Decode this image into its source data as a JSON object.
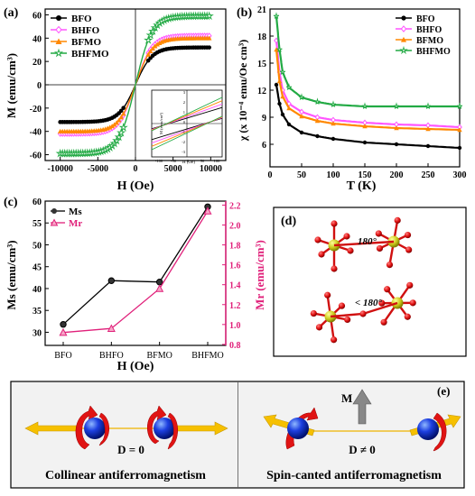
{
  "figure": {
    "panels": [
      {
        "letter": "(a)"
      },
      {
        "letter": "(b)"
      },
      {
        "letter": "(c)"
      },
      {
        "letter": "(d)"
      },
      {
        "letter": "(e)"
      }
    ]
  },
  "chart_data": [
    {
      "id": "a",
      "type": "line",
      "xlabel": "H (Oe)",
      "ylabel": "M (emu/cm³)",
      "xlim": [
        -12000,
        12000
      ],
      "ylim": [
        -65,
        65
      ],
      "x_ticks": [
        "-10000",
        "-5000",
        "0",
        "5000",
        "10000"
      ],
      "y_ticks": [
        "-60",
        "-40",
        "-20",
        "0",
        "20",
        "40",
        "60"
      ],
      "legend_position": "top-left",
      "series": [
        {
          "name": "BFO",
          "color": "#000000",
          "marker": "circle",
          "Ms": 32,
          "x": [
            -10000,
            -5000,
            -3000,
            -1000,
            0,
            1000,
            3000,
            5000,
            10000
          ],
          "y": [
            -31,
            -29,
            -26,
            -16,
            0,
            16,
            26,
            29,
            32
          ]
        },
        {
          "name": "BHFO",
          "color": "#ff55ff",
          "marker": "diamond",
          "Ms": 42,
          "x": [
            -10000,
            -5000,
            -3000,
            -1000,
            0,
            1000,
            3000,
            5000,
            10000
          ],
          "y": [
            -40,
            -38,
            -34,
            -20,
            0,
            20,
            34,
            39,
            42
          ]
        },
        {
          "name": "BFMO",
          "color": "#ff8800",
          "marker": "triangle",
          "Ms": 40,
          "x": [
            -10000,
            -5000,
            -3000,
            -1000,
            0,
            1000,
            3000,
            5000,
            10000
          ],
          "y": [
            -38,
            -36,
            -32,
            -19,
            0,
            19,
            32,
            37,
            40
          ]
        },
        {
          "name": "BHFMO",
          "color": "#22aa44",
          "marker": "star",
          "Ms": 59,
          "x": [
            -10000,
            -5000,
            -3000,
            -1000,
            0,
            1000,
            3000,
            5000,
            10000
          ],
          "y": [
            -55,
            -52,
            -46,
            -28,
            0,
            28,
            46,
            54,
            59
          ]
        }
      ],
      "inset": {
        "xlabel": "H (Oe)",
        "ylabel": "M (emu/cm³)",
        "x_ticks": [
          "-100",
          "-50",
          "0",
          "50",
          "100"
        ],
        "y_ticks": [
          "-3",
          "-2",
          "-1",
          "0",
          "1",
          "2",
          "3"
        ]
      }
    },
    {
      "id": "b",
      "type": "line",
      "xlabel": "T (K)",
      "ylabel": "χ (x 10⁻⁴ emu/Oe cm³)",
      "xlim": [
        0,
        300
      ],
      "ylim": [
        3.5,
        21
      ],
      "x_ticks": [
        "0",
        "50",
        "100",
        "150",
        "200",
        "250",
        "300"
      ],
      "y_ticks": [
        "6",
        "9",
        "12",
        "15",
        "18",
        "21"
      ],
      "legend_position": "top-right",
      "series": [
        {
          "name": "BFO",
          "color": "#000000",
          "T": [
            10,
            15,
            20,
            30,
            50,
            75,
            100,
            150,
            200,
            250,
            300
          ],
          "chi": [
            12.6,
            10.5,
            9.3,
            8.2,
            7.3,
            6.9,
            6.6,
            6.2,
            6.0,
            5.8,
            5.6
          ]
        },
        {
          "name": "BHFO",
          "color": "#ff55ff",
          "T": [
            10,
            15,
            20,
            30,
            50,
            75,
            100,
            150,
            200,
            250,
            300
          ],
          "chi": [
            17.5,
            14.0,
            12.0,
            10.5,
            9.6,
            9.0,
            8.7,
            8.4,
            8.2,
            8.1,
            7.9
          ]
        },
        {
          "name": "BFMO",
          "color": "#ff8800",
          "T": [
            10,
            15,
            20,
            30,
            50,
            75,
            100,
            150,
            200,
            250,
            300
          ],
          "chi": [
            16.5,
            13.0,
            11.3,
            10.0,
            9.1,
            8.6,
            8.3,
            8.0,
            7.8,
            7.7,
            7.6
          ]
        },
        {
          "name": "BHFMO",
          "color": "#22aa44",
          "T": [
            10,
            15,
            20,
            30,
            50,
            75,
            100,
            150,
            200,
            250,
            300
          ],
          "chi": [
            20.2,
            16.5,
            14.0,
            12.3,
            11.2,
            10.7,
            10.4,
            10.2,
            10.2,
            10.2,
            10.2
          ]
        }
      ]
    },
    {
      "id": "c",
      "type": "line",
      "xlabel": "H (Oe)",
      "ylabel": "Ms (emu/cm³)",
      "y2label": "Mr (emu/cm³)",
      "categories": [
        "BFO",
        "BHFO",
        "BFMO",
        "BHFMO"
      ],
      "ylim": [
        27,
        60
      ],
      "y2lim": [
        0.79,
        2.24
      ],
      "y_ticks": [
        "30",
        "35",
        "40",
        "45",
        "50",
        "55",
        "60"
      ],
      "y2_ticks": [
        "0.8",
        "1.0",
        "1.2",
        "1.4",
        "1.6",
        "1.8",
        "2.0",
        "2.2"
      ],
      "legend_position": "top-left",
      "series": [
        {
          "name": "Ms",
          "color": "#000000",
          "axis": "left",
          "values": [
            31.8,
            41.8,
            41.5,
            58.7
          ]
        },
        {
          "name": "Mr",
          "color": "#e0207a",
          "axis": "right",
          "values": [
            0.92,
            0.96,
            1.36,
            2.14
          ]
        }
      ]
    }
  ],
  "panel_d": {
    "angle_top": "180°",
    "angle_bottom": "< 180°"
  },
  "panel_e": {
    "left_eq": "D = 0",
    "left_caption": "Collinear antiferromagnetism",
    "right_eq": "D ≠ 0",
    "right_vector": "M",
    "right_caption": "Spin-canted antiferromagnetism"
  }
}
